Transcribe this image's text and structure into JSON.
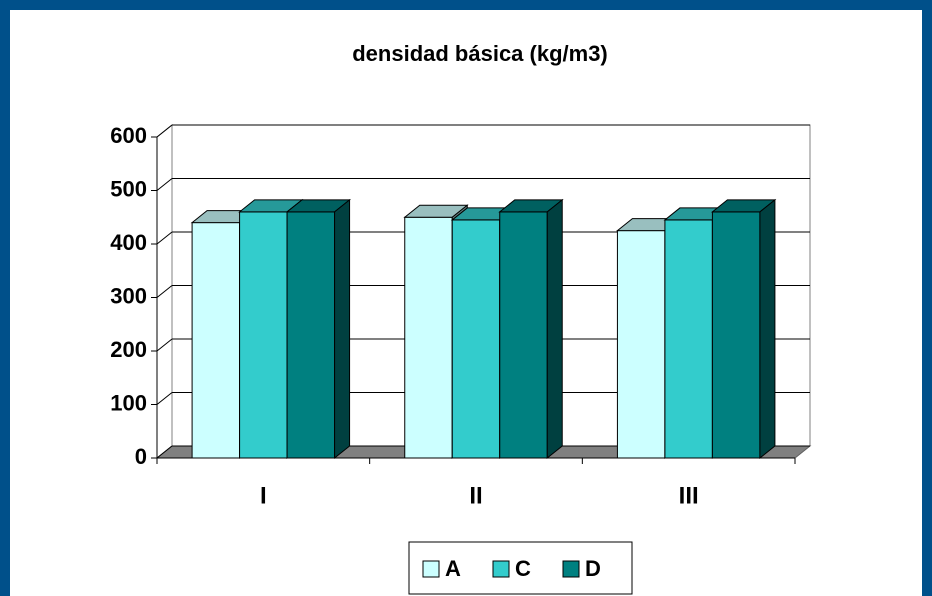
{
  "chart_data": {
    "type": "bar3d",
    "title": "densidad básica (kg/m3)",
    "categories": [
      "I",
      "II",
      "III"
    ],
    "series": [
      {
        "name": "A",
        "color": "#ccffff",
        "values": [
          440,
          450,
          425
        ]
      },
      {
        "name": "C",
        "color": "#33cccc",
        "values": [
          460,
          445,
          445
        ]
      },
      {
        "name": "D",
        "color": "#008080",
        "values": [
          460,
          460,
          460
        ]
      }
    ],
    "ylim": [
      0,
      600
    ],
    "yticks": [
      0,
      100,
      200,
      300,
      400,
      500,
      600
    ],
    "grid": true,
    "legend": "bottom"
  }
}
